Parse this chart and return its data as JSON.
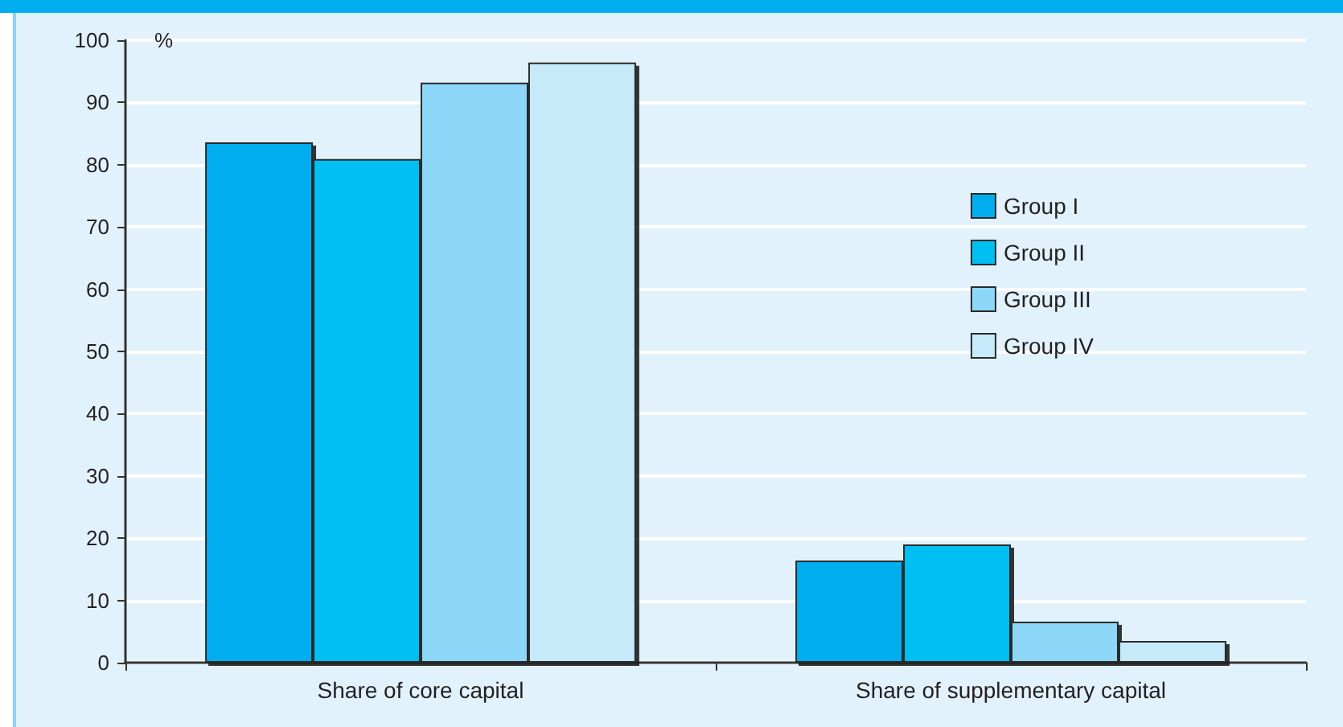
{
  "chart_data": {
    "type": "bar",
    "ylabel": "%",
    "categories": [
      "Share of core capital",
      "Share of supplementary capital"
    ],
    "series": [
      {
        "name": "Group I",
        "color": "#00aeef",
        "values": [
          83.6,
          16.4
        ]
      },
      {
        "name": "Group II",
        "color": "#00bff3",
        "values": [
          80.9,
          19.0
        ]
      },
      {
        "name": "Group III",
        "color": "#8dd8f8",
        "values": [
          93.2,
          6.6
        ]
      },
      {
        "name": "Group IV",
        "color": "#c7eafb",
        "values": [
          96.4,
          3.5
        ]
      }
    ],
    "ylim": [
      0,
      100
    ],
    "yticks": [
      0,
      10,
      20,
      30,
      40,
      50,
      60,
      70,
      80,
      90,
      100
    ],
    "grid": "y",
    "legend": "right"
  }
}
